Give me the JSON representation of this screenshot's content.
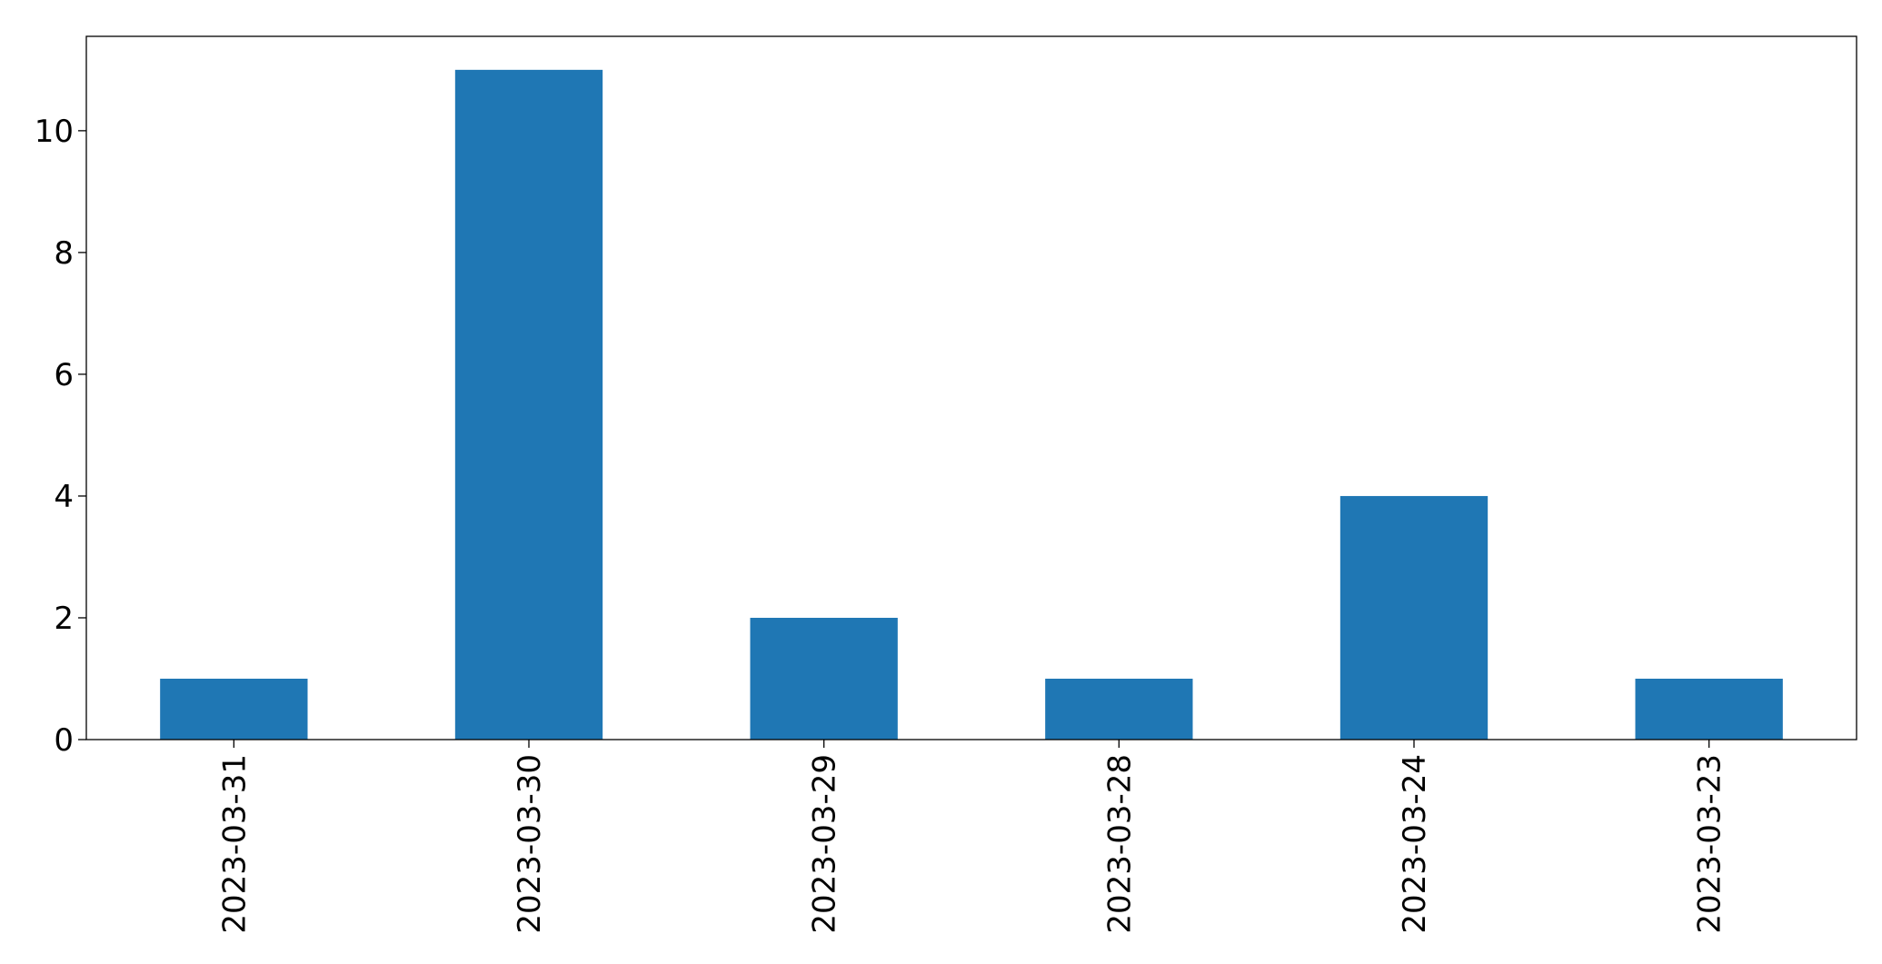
{
  "chart_data": {
    "type": "bar",
    "categories": [
      "2023-03-31",
      "2023-03-30",
      "2023-03-29",
      "2023-03-28",
      "2023-03-24",
      "2023-03-23"
    ],
    "values": [
      1,
      11,
      2,
      1,
      4,
      1
    ],
    "title": "",
    "xlabel": "",
    "ylabel": "",
    "ylim": [
      0,
      11.55
    ],
    "yticks": [
      0,
      2,
      4,
      6,
      8,
      10
    ],
    "x_tick_rotation": 90,
    "grid": false,
    "legend": "none",
    "bar_color": "#1f77b4"
  }
}
